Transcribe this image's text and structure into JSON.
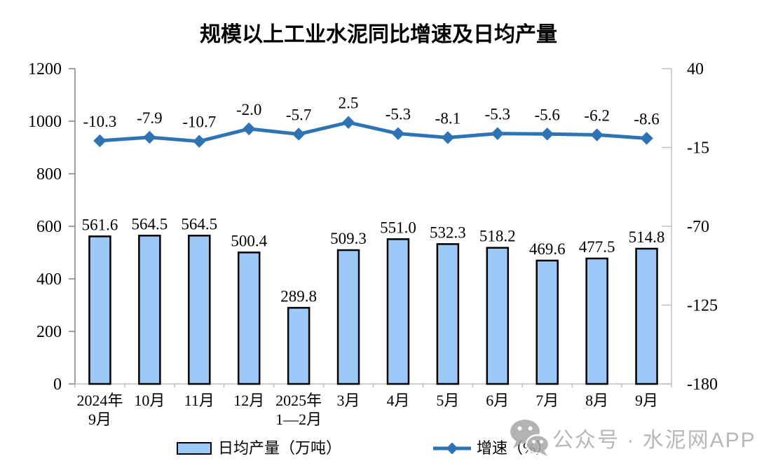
{
  "chart_data": {
    "type": "bar+line",
    "title": "规模以上工业水泥同比增速及日均产量",
    "categories": [
      [
        "2024年",
        "9月"
      ],
      [
        "10月"
      ],
      [
        "11月"
      ],
      [
        "12月"
      ],
      [
        "2025年",
        "1—2月"
      ],
      [
        "3月"
      ],
      [
        "4月"
      ],
      [
        "5月"
      ],
      [
        "6月"
      ],
      [
        "7月"
      ],
      [
        "8月"
      ],
      [
        "9月"
      ]
    ],
    "series": [
      {
        "name": "日均产量（万吨）",
        "type": "bar",
        "axis": "left",
        "values": [
          561.6,
          564.5,
          564.5,
          500.4,
          289.8,
          509.3,
          551.0,
          532.3,
          518.2,
          469.6,
          477.5,
          514.8
        ]
      },
      {
        "name": "增速（%）",
        "type": "line",
        "axis": "right",
        "values": [
          -10.3,
          -7.9,
          -10.7,
          -2.0,
          -5.7,
          2.5,
          -5.3,
          -8.1,
          -5.3,
          -5.6,
          -6.2,
          -8.6
        ]
      }
    ],
    "left_axis": {
      "min": 0,
      "max": 1200,
      "ticks": [
        0,
        200,
        400,
        600,
        800,
        1000,
        1200
      ]
    },
    "right_axis": {
      "min": -180,
      "max": 40,
      "ticks": [
        40,
        -15,
        -70,
        -125,
        -180
      ]
    },
    "grid": false,
    "legend_position": "bottom",
    "colors": {
      "bar_fill": "#9DC9F8",
      "bar_border": "#000000",
      "line": "#2E74B5",
      "axis_dark": "#808080",
      "axis_light": "#BFBFBF",
      "text": "#000000"
    }
  },
  "watermark": {
    "text": "公众号 · 水泥网APP",
    "icon": "wechat-icon",
    "color": "#ABABAB"
  }
}
